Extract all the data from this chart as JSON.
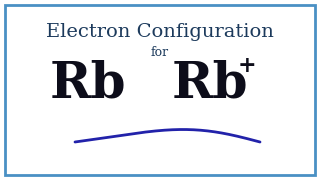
{
  "title_line1": "Electron Configuration",
  "title_line2": "for",
  "symbol_left": "Rb",
  "symbol_right": "Rb",
  "superscript": "+",
  "bg_color": "#ffffff",
  "border_color": "#4a90c4",
  "title_color": "#1c3a5c",
  "symbol_color": "#0d0d1a",
  "curve_color": "#2222aa",
  "title_fontsize": 14,
  "for_fontsize": 9,
  "symbol_fontsize": 36,
  "super_fontsize": 16,
  "border_linewidth": 2.0
}
